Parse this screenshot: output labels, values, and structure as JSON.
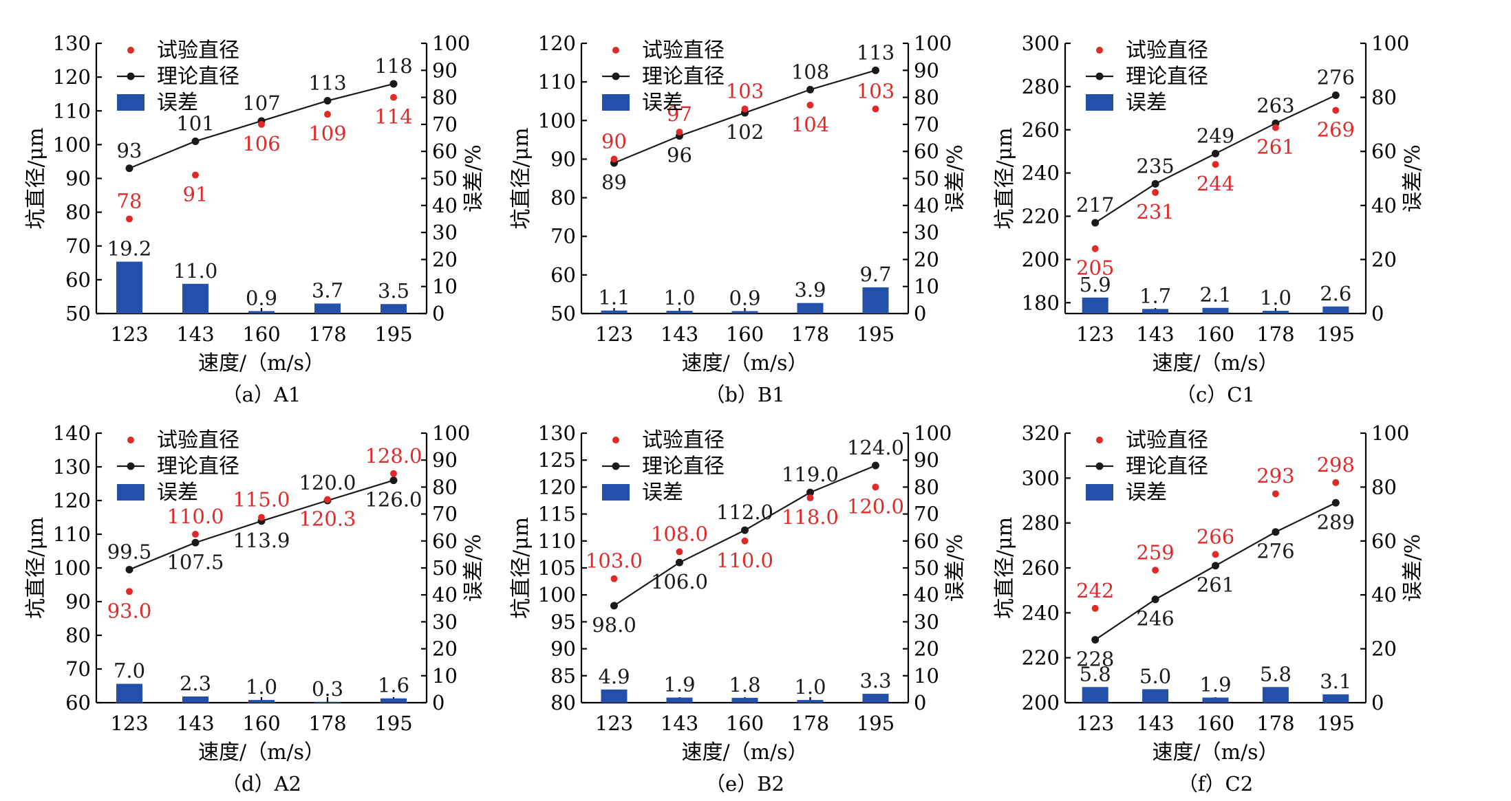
{
  "colors": {
    "experimental": "#e02a2a",
    "theoretical": "#1a1a1a",
    "error_bar": "#2350a8",
    "axis": "#000000"
  },
  "legend": {
    "experimental": "试验直径",
    "theoretical": "理论直径",
    "error": "误差"
  },
  "xlabel": "速度/（m/s）",
  "ylabel_left": "坑直径/μm",
  "ylabel_right": "误差/%",
  "chart_data": [
    {
      "type": "bar+line+scatter",
      "caption": "（a）A1",
      "categories": [
        "123",
        "143",
        "160",
        "178",
        "195"
      ],
      "y_left_range": [
        50,
        130
      ],
      "y_left_ticks": [
        "50",
        "60",
        "70",
        "80",
        "90",
        "100",
        "110",
        "120",
        "130"
      ],
      "y_right_range": [
        0,
        100
      ],
      "y_right_ticks": [
        "0",
        "10",
        "20",
        "30",
        "40",
        "50",
        "60",
        "70",
        "80",
        "90",
        "100"
      ],
      "experimental": [
        78,
        91,
        106,
        109,
        114
      ],
      "experimental_labels": [
        "78",
        "91",
        "106",
        "109",
        "114"
      ],
      "theoretical": [
        93,
        101,
        107,
        113,
        118
      ],
      "theoretical_labels": [
        "93",
        "101",
        "107",
        "113",
        "118"
      ],
      "error": [
        19.2,
        11.0,
        0.9,
        3.7,
        3.5
      ],
      "error_labels": [
        "19.2",
        "11.0",
        "0.9",
        "3.7",
        "3.5"
      ]
    },
    {
      "type": "bar+line+scatter",
      "caption": "（b）B1",
      "categories": [
        "123",
        "143",
        "160",
        "178",
        "195"
      ],
      "y_left_range": [
        50,
        120
      ],
      "y_left_ticks": [
        "50",
        "60",
        "70",
        "80",
        "90",
        "100",
        "110",
        "120"
      ],
      "y_right_range": [
        0,
        100
      ],
      "y_right_ticks": [
        "0",
        "10",
        "20",
        "30",
        "40",
        "50",
        "60",
        "70",
        "80",
        "90",
        "100"
      ],
      "experimental": [
        90,
        97,
        103,
        104,
        103
      ],
      "experimental_labels": [
        "90",
        "97",
        "103",
        "104",
        "103"
      ],
      "theoretical": [
        89,
        96,
        102,
        108,
        113
      ],
      "theoretical_labels": [
        "89",
        "96",
        "102",
        "108",
        "113"
      ],
      "error": [
        1.1,
        1.0,
        0.9,
        3.9,
        9.7
      ],
      "error_labels": [
        "1.1",
        "1.0",
        "0.9",
        "3.9",
        "9.7"
      ]
    },
    {
      "type": "bar+line+scatter",
      "caption": "（c）C1",
      "categories": [
        "123",
        "143",
        "160",
        "178",
        "195"
      ],
      "y_left_range": [
        175,
        300
      ],
      "y_left_ticks": [
        "180",
        "200",
        "220",
        "240",
        "260",
        "280",
        "300"
      ],
      "y_right_range": [
        0,
        100
      ],
      "y_right_ticks": [
        "0",
        "20",
        "40",
        "60",
        "80",
        "100"
      ],
      "experimental": [
        205,
        231,
        244,
        261,
        269
      ],
      "experimental_labels": [
        "205",
        "231",
        "244",
        "261",
        "269"
      ],
      "theoretical": [
        217,
        235,
        249,
        263,
        276
      ],
      "theoretical_labels": [
        "217",
        "235",
        "249",
        "263",
        "276"
      ],
      "error": [
        5.9,
        1.7,
        2.1,
        1.0,
        2.6
      ],
      "error_labels": [
        "5.9",
        "1.7",
        "2.1",
        "1.0",
        "2.6"
      ]
    },
    {
      "type": "bar+line+scatter",
      "caption": "（d）A2",
      "categories": [
        "123",
        "143",
        "160",
        "178",
        "195"
      ],
      "y_left_range": [
        60,
        140
      ],
      "y_left_ticks": [
        "60",
        "70",
        "80",
        "90",
        "100",
        "110",
        "120",
        "130",
        "140"
      ],
      "y_right_range": [
        0,
        100
      ],
      "y_right_ticks": [
        "0",
        "10",
        "20",
        "30",
        "40",
        "50",
        "60",
        "70",
        "80",
        "90",
        "100"
      ],
      "experimental": [
        93.0,
        110.0,
        115.0,
        120.3,
        128.0
      ],
      "experimental_labels": [
        "93.0",
        "110.0",
        "115.0",
        "120.3",
        "128.0"
      ],
      "theoretical": [
        99.5,
        107.5,
        113.9,
        120.0,
        126.0
      ],
      "theoretical_labels": [
        "99.5",
        "107.5",
        "113.9",
        "120.0",
        "126.0"
      ],
      "error": [
        7.0,
        2.3,
        1.0,
        0.3,
        1.6
      ],
      "error_labels": [
        "7.0",
        "2.3",
        "1.0",
        "0.3",
        "1.6"
      ]
    },
    {
      "type": "bar+line+scatter",
      "caption": "（e）B2",
      "categories": [
        "123",
        "143",
        "160",
        "178",
        "195"
      ],
      "y_left_range": [
        80,
        130
      ],
      "y_left_ticks": [
        "80",
        "85",
        "90",
        "95",
        "100",
        "105",
        "110",
        "115",
        "120",
        "125",
        "130"
      ],
      "y_right_range": [
        0,
        100
      ],
      "y_right_ticks": [
        "0",
        "10",
        "20",
        "30",
        "40",
        "50",
        "60",
        "70",
        "80",
        "90",
        "100"
      ],
      "experimental": [
        103.0,
        108.0,
        110.0,
        118.0,
        120.0
      ],
      "experimental_labels": [
        "103.0",
        "108.0",
        "110.0",
        "118.0",
        "120.0"
      ],
      "theoretical": [
        98.0,
        106.0,
        112.0,
        119.0,
        124.0
      ],
      "theoretical_labels": [
        "98.0",
        "106.0",
        "112.0",
        "119.0",
        "124.0"
      ],
      "error": [
        4.9,
        1.9,
        1.8,
        1.0,
        3.3
      ],
      "error_labels": [
        "4.9",
        "1.9",
        "1.8",
        "1.0",
        "3.3"
      ]
    },
    {
      "type": "bar+line+scatter",
      "caption": "（f）C2",
      "categories": [
        "123",
        "143",
        "160",
        "178",
        "195"
      ],
      "y_left_range": [
        200,
        320
      ],
      "y_left_ticks": [
        "200",
        "220",
        "240",
        "260",
        "280",
        "300",
        "320"
      ],
      "y_right_range": [
        0,
        100
      ],
      "y_right_ticks": [
        "0",
        "20",
        "40",
        "60",
        "80",
        "100"
      ],
      "experimental": [
        242,
        259,
        266,
        293,
        298
      ],
      "experimental_labels": [
        "242",
        "259",
        "266",
        "293",
        "298"
      ],
      "theoretical": [
        228,
        246,
        261,
        276,
        289
      ],
      "theoretical_labels": [
        "228",
        "246",
        "261",
        "276",
        "289"
      ],
      "error": [
        5.8,
        5.0,
        1.9,
        5.8,
        3.1
      ],
      "error_labels": [
        "5.8",
        "5.0",
        "1.9",
        "5.8",
        "3.1"
      ]
    }
  ]
}
